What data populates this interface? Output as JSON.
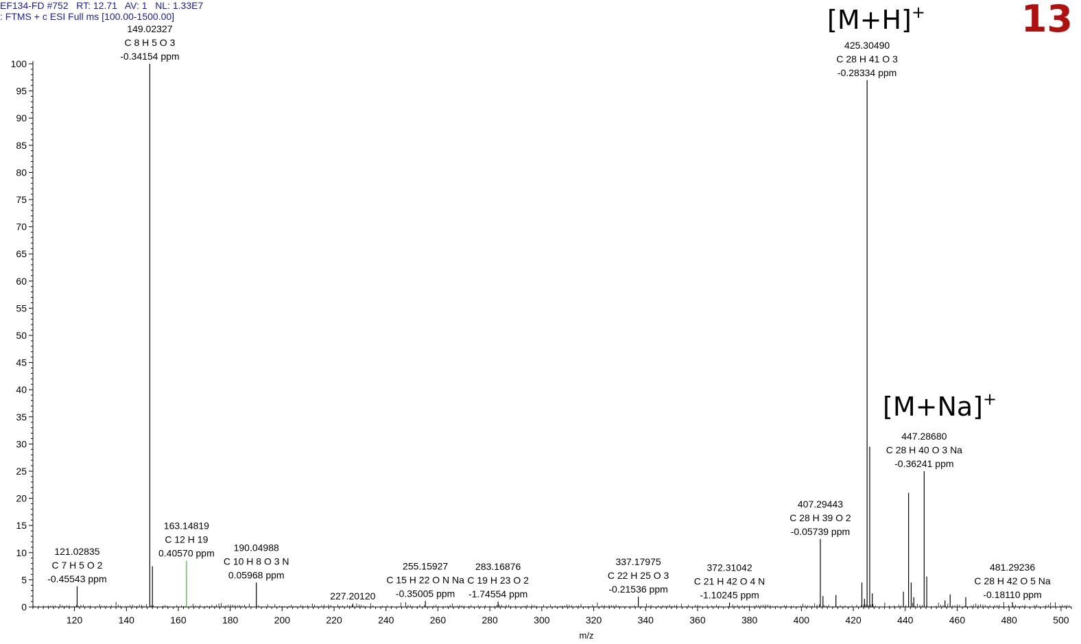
{
  "header": {
    "line1": "EF134-FD #752   RT: 12.71   AV: 1   NL: 1.33E7",
    "line2": ": FTMS + c ESI Full ms [100.00-1500.00]"
  },
  "badge": "13",
  "adducts": [
    {
      "base": "[M+H]",
      "sup": "+",
      "mz": 425.3049
    },
    {
      "base": "[M+Na]",
      "sup": "+",
      "mz": 447.2868
    }
  ],
  "chart_data": {
    "type": "bar",
    "title": "",
    "xlabel": "m/z",
    "ylabel": "",
    "xlim": [
      104,
      504
    ],
    "ylim": [
      0,
      100
    ],
    "xticks": [
      120,
      140,
      160,
      180,
      200,
      220,
      240,
      260,
      280,
      300,
      320,
      340,
      360,
      380,
      400,
      420,
      440,
      460,
      480,
      500
    ],
    "yticks": [
      0,
      5,
      10,
      15,
      20,
      25,
      30,
      35,
      40,
      45,
      50,
      55,
      60,
      65,
      70,
      75,
      80,
      85,
      90,
      95,
      100
    ],
    "grid": false,
    "colors": {
      "peak": "#000000",
      "highlight": "#33bb33",
      "header": "#1a1aa6",
      "badge": "#b01010"
    },
    "peaks": [
      {
        "mz": 121.02835,
        "intensity": 3.8,
        "label": [
          "121.02835",
          "C 7 H 5 O 2",
          "-0.45543 ppm"
        ]
      },
      {
        "mz": 149.02327,
        "intensity": 100,
        "label": [
          "149.02327",
          "C 8 H 5 O 3",
          "-0.34154 ppm"
        ]
      },
      {
        "mz": 150.0266,
        "intensity": 7.5
      },
      {
        "mz": 163.14819,
        "intensity": 8.5,
        "highlight": true,
        "label": [
          "163.14819",
          "C 12 H 19",
          "0.40570 ppm"
        ]
      },
      {
        "mz": 190.04988,
        "intensity": 4.5,
        "label": [
          "190.04988",
          "C 10 H 8 O 3 N",
          "0.05968 ppm"
        ]
      },
      {
        "mz": 227.2012,
        "intensity": 0.6,
        "label": [
          "227.20120"
        ]
      },
      {
        "mz": 255.15927,
        "intensity": 1.1,
        "label": [
          "255.15927",
          "C 15 H 22 O N Na",
          "-0.35005 ppm"
        ]
      },
      {
        "mz": 283.16876,
        "intensity": 1.0,
        "label": [
          "283.16876",
          "C 19 H 23 O 2",
          "-1.74554 ppm"
        ]
      },
      {
        "mz": 337.17975,
        "intensity": 1.9,
        "label": [
          "337.17975",
          "C 22 H 25 O 3",
          "-0.21536 ppm"
        ]
      },
      {
        "mz": 372.31042,
        "intensity": 0.8,
        "label": [
          "372.31042",
          "C 21 H 42 O 4 N",
          "-1.10245 ppm"
        ]
      },
      {
        "mz": 407.29443,
        "intensity": 12.5,
        "label": [
          "407.29443",
          "C 28 H 39 O 2",
          "-0.05739 ppm"
        ]
      },
      {
        "mz": 408.3,
        "intensity": 2.0
      },
      {
        "mz": 413.3,
        "intensity": 2.2
      },
      {
        "mz": 423.3,
        "intensity": 4.5
      },
      {
        "mz": 424.3,
        "intensity": 1.5
      },
      {
        "mz": 425.3049,
        "intensity": 97,
        "label": [
          "425.30490",
          "C 28 H 41 O 3",
          "-0.28334 ppm"
        ]
      },
      {
        "mz": 426.31,
        "intensity": 29.5
      },
      {
        "mz": 427.31,
        "intensity": 2.5
      },
      {
        "mz": 439.3,
        "intensity": 2.8
      },
      {
        "mz": 441.29,
        "intensity": 21
      },
      {
        "mz": 442.29,
        "intensity": 4.5
      },
      {
        "mz": 443.3,
        "intensity": 1.8
      },
      {
        "mz": 447.2868,
        "intensity": 25,
        "label": [
          "447.28680",
          "C 28 H 40 O 3 Na",
          "-0.36241 ppm"
        ]
      },
      {
        "mz": 448.29,
        "intensity": 5.6
      },
      {
        "mz": 455.3,
        "intensity": 1.2
      },
      {
        "mz": 457.3,
        "intensity": 2.3
      },
      {
        "mz": 463.3,
        "intensity": 1.8
      },
      {
        "mz": 481.29236,
        "intensity": 0.9,
        "label": [
          "481.29236",
          "C 28 H 42 O 5 Na",
          "-0.18110 ppm"
        ]
      }
    ]
  }
}
